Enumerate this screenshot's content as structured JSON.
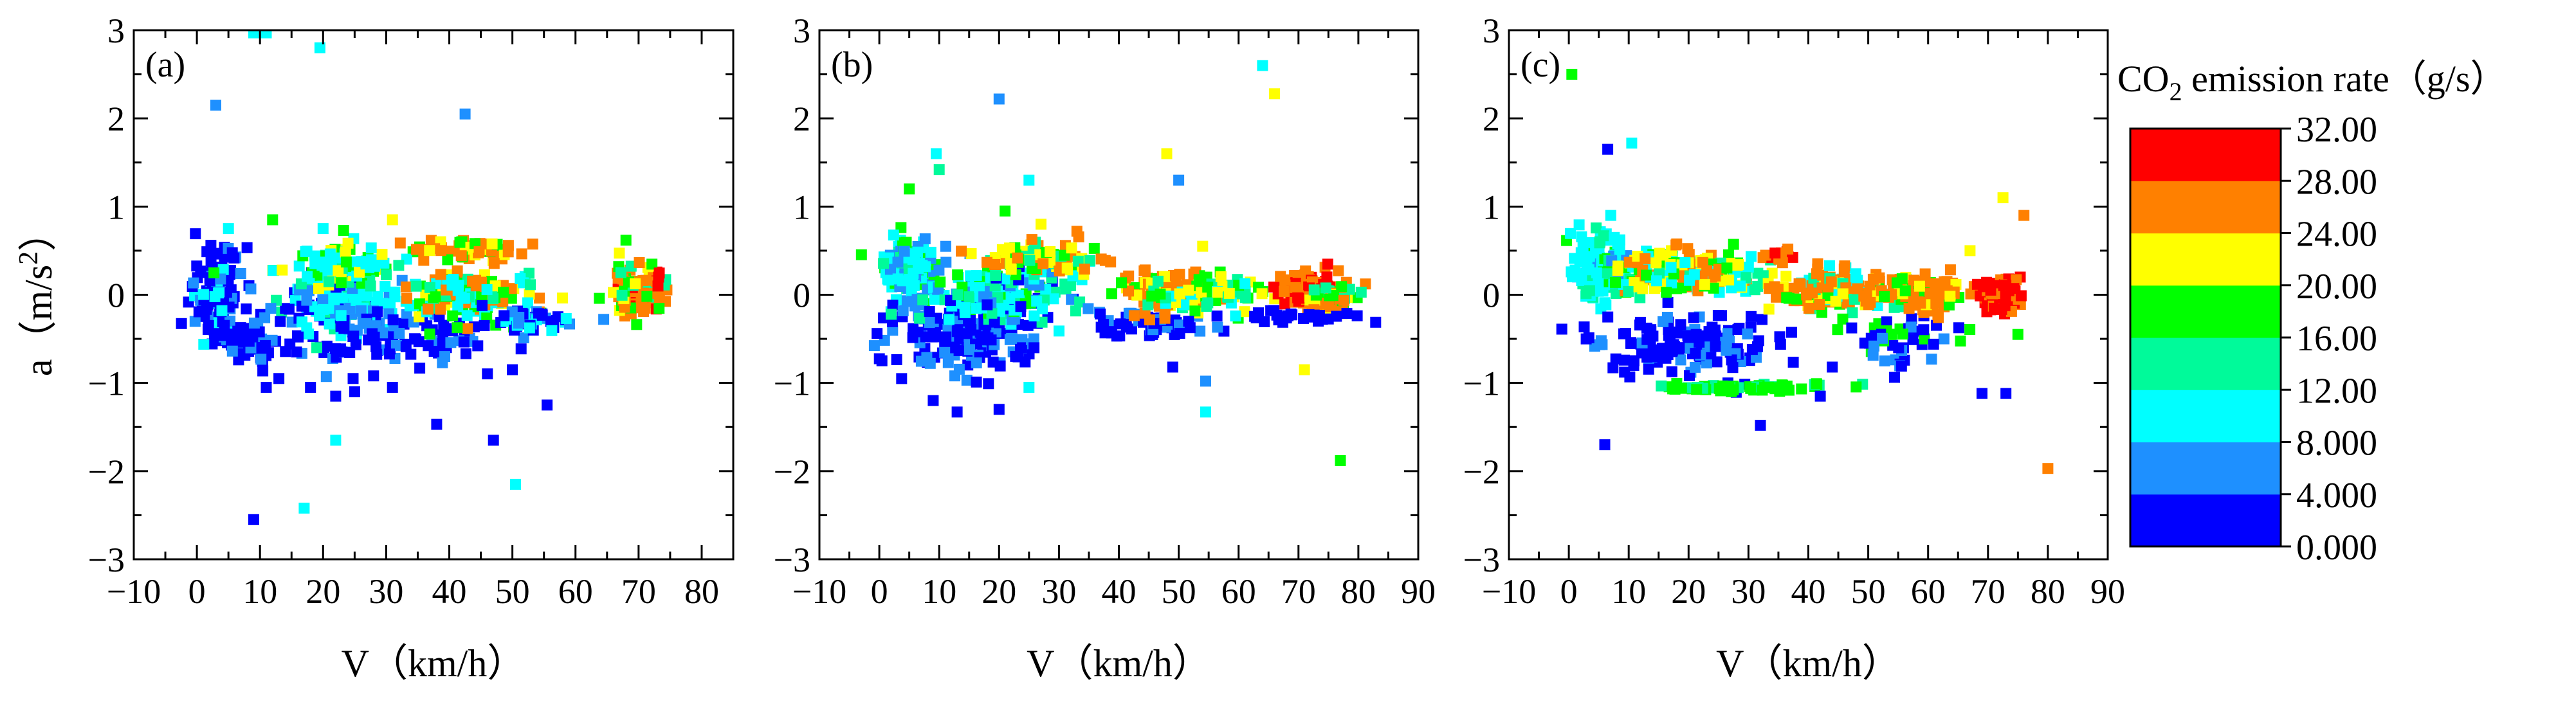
{
  "figure": {
    "ylabel_main": "a（m/s",
    "ylabel_sup": "2",
    "ylabel_close": "）",
    "colorbar_title_main": "CO",
    "colorbar_title_sub": "2",
    "colorbar_title_rest": " emission rate（g/s）"
  },
  "colorbar": {
    "levels": [
      "0.000",
      "4.000",
      "8.000",
      "12.00",
      "16.00",
      "20.00",
      "24.00",
      "28.00",
      "32.00"
    ],
    "colors": [
      "#0000ff",
      "#1e90ff",
      "#00ffff",
      "#00fa9a",
      "#00ff00",
      "#ffff00",
      "#ff8000",
      "#ff0000"
    ]
  },
  "chart_data": [
    {
      "type": "scatter",
      "panel_label": "(a)",
      "xlabel": "V（km/h）",
      "ylabel": "a（m/s²）",
      "xlim": [
        -10,
        85
      ],
      "ylim": [
        -3,
        3
      ],
      "xticks": [
        "-10",
        "0",
        "10",
        "20",
        "30",
        "40",
        "50",
        "60",
        "70",
        "80"
      ],
      "yticks": [
        "3",
        "2",
        "1",
        "0",
        "-1",
        "-2",
        "-3"
      ],
      "color_variable": "CO2 emission rate (g/s)",
      "points": [
        {
          "x": 9,
          "y": 2.97,
          "c": 6
        },
        {
          "x": 11,
          "y": 2.97,
          "c": 6
        },
        {
          "x": 19.5,
          "y": 2.8,
          "c": 7
        },
        {
          "x": 3,
          "y": 2.15,
          "c": 3
        },
        {
          "x": 42.5,
          "y": 2.05,
          "c": 3
        },
        {
          "x": 5,
          "y": 0.75,
          "c": 5
        },
        {
          "x": 12,
          "y": 0.85,
          "c": 11
        },
        {
          "x": 31,
          "y": 0.85,
          "c": 13
        },
        {
          "x": 20,
          "y": 0.75,
          "c": 7
        },
        {
          "x": 68,
          "y": 0.62,
          "c": 12
        },
        {
          "x": 22,
          "y": -1.65,
          "c": 5
        },
        {
          "x": 38,
          "y": -1.47,
          "c": 2
        },
        {
          "x": 47,
          "y": -1.65,
          "c": 2
        },
        {
          "x": 55.5,
          "y": -1.25,
          "c": 2
        },
        {
          "x": 50.5,
          "y": -2.15,
          "c": 5
        },
        {
          "x": 17,
          "y": -2.42,
          "c": 5
        },
        {
          "x": 9,
          "y": -2.55,
          "c": 2
        },
        {
          "x": 19,
          "y": -0.6,
          "c": 9
        },
        {
          "x": 18,
          "y": -1.05,
          "c": 2
        },
        {
          "x": 31,
          "y": -1.05,
          "c": 2
        },
        {
          "x": 22,
          "y": -1.15,
          "c": 2
        },
        {
          "x": 11,
          "y": -1.05,
          "c": 2
        },
        {
          "x": 50,
          "y": -0.85,
          "c": 2
        },
        {
          "x": 28,
          "y": -0.92,
          "c": 2
        },
        {
          "x": 13,
          "y": -0.95,
          "c": 2
        },
        {
          "x": 25,
          "y": -1.1,
          "c": 2
        }
      ],
      "clusters": [
        {
          "cx": 3,
          "cy": 0.05,
          "sx": 3.5,
          "sy": 0.42,
          "n": 110,
          "cs": [
            2,
            2,
            2,
            2,
            3,
            3,
            6
          ]
        },
        {
          "cx": 8,
          "cy": -0.5,
          "sx": 5,
          "sy": 0.25,
          "n": 60,
          "cs": [
            2,
            2,
            2,
            3
          ]
        },
        {
          "cx": 22,
          "cy": -0.15,
          "sx": 8,
          "sy": 0.32,
          "n": 130,
          "cs": [
            2,
            2,
            3,
            6,
            6,
            7,
            9
          ]
        },
        {
          "cx": 30,
          "cy": -0.5,
          "sx": 15,
          "sy": 0.25,
          "n": 90,
          "cs": [
            2,
            2,
            2,
            3
          ]
        },
        {
          "cx": 22,
          "cy": 0.35,
          "sx": 8,
          "sy": 0.2,
          "n": 100,
          "cs": [
            6,
            7,
            7,
            9,
            11,
            13
          ]
        },
        {
          "cx": 43,
          "cy": 0.0,
          "sx": 9,
          "sy": 0.22,
          "n": 150,
          "cs": [
            6,
            7,
            9,
            11,
            11,
            13,
            15,
            15
          ]
        },
        {
          "cx": 43,
          "cy": 0.5,
          "sx": 8,
          "sy": 0.12,
          "n": 50,
          "cs": [
            11,
            13,
            15,
            15,
            17,
            17
          ]
        },
        {
          "cx": 70,
          "cy": 0.05,
          "sx": 3.3,
          "sy": 0.2,
          "n": 130,
          "cs": [
            9,
            11,
            13,
            15,
            15,
            17,
            17,
            19
          ]
        },
        {
          "cx": 54,
          "cy": -0.3,
          "sx": 7,
          "sy": 0.12,
          "n": 40,
          "cs": [
            2,
            2,
            3,
            6
          ]
        }
      ]
    },
    {
      "type": "scatter",
      "panel_label": "(b)",
      "xlabel": "V（km/h）",
      "ylabel": "a（m/s²）",
      "xlim": [
        -10,
        90
      ],
      "ylim": [
        -3,
        3
      ],
      "xticks": [
        "-10",
        "0",
        "10",
        "20",
        "30",
        "40",
        "50",
        "60",
        "70",
        "80",
        "90"
      ],
      "yticks": [
        "3",
        "2",
        "1",
        "0",
        "-1",
        "-2",
        "-3"
      ],
      "color_variable": "CO2 emission rate (g/s)",
      "points": [
        {
          "x": 64,
          "y": 2.6,
          "c": 6
        },
        {
          "x": 66,
          "y": 2.28,
          "c": 14
        },
        {
          "x": 20,
          "y": 2.22,
          "c": 3
        },
        {
          "x": 48,
          "y": 1.6,
          "c": 14
        },
        {
          "x": 9.5,
          "y": 1.6,
          "c": 7
        },
        {
          "x": 10,
          "y": 1.42,
          "c": 9
        },
        {
          "x": 25,
          "y": 1.3,
          "c": 7
        },
        {
          "x": 50,
          "y": 1.3,
          "c": 3
        },
        {
          "x": 5,
          "y": 1.2,
          "c": 11
        },
        {
          "x": 21,
          "y": 0.95,
          "c": 11
        },
        {
          "x": 27,
          "y": 0.8,
          "c": 13
        },
        {
          "x": 33,
          "y": 0.72,
          "c": 17
        },
        {
          "x": 54,
          "y": 0.55,
          "c": 13
        },
        {
          "x": 71,
          "y": -0.85,
          "c": 14
        },
        {
          "x": 54.5,
          "y": -0.98,
          "c": 3
        },
        {
          "x": 54.5,
          "y": -1.33,
          "c": 6
        },
        {
          "x": 77,
          "y": -1.88,
          "c": 11
        },
        {
          "x": 49,
          "y": -0.82,
          "c": 2
        },
        {
          "x": 20,
          "y": -1.3,
          "c": 2
        },
        {
          "x": 13,
          "y": -1.33,
          "c": 2
        },
        {
          "x": 9,
          "y": -1.2,
          "c": 2
        },
        {
          "x": 25,
          "y": -1.05,
          "c": 5
        }
      ],
      "clusters": [
        {
          "cx": 5,
          "cy": 0.3,
          "sx": 4,
          "sy": 0.28,
          "n": 120,
          "cs": [
            3,
            5,
            6,
            6,
            7,
            9,
            11
          ]
        },
        {
          "cx": 15,
          "cy": -0.45,
          "sx": 10,
          "sy": 0.35,
          "n": 170,
          "cs": [
            2,
            2,
            2,
            2,
            3,
            3
          ]
        },
        {
          "cx": 20,
          "cy": 0.0,
          "sx": 10,
          "sy": 0.32,
          "n": 170,
          "cs": [
            2,
            3,
            5,
            6,
            6,
            7,
            9,
            11
          ]
        },
        {
          "cx": 28,
          "cy": 0.4,
          "sx": 9,
          "sy": 0.15,
          "n": 90,
          "cs": [
            9,
            11,
            13,
            15,
            17
          ]
        },
        {
          "cx": 45,
          "cy": -0.35,
          "sx": 8,
          "sy": 0.15,
          "n": 60,
          "cs": [
            2,
            2,
            3
          ]
        },
        {
          "cx": 48,
          "cy": 0.05,
          "sx": 6,
          "sy": 0.2,
          "n": 110,
          "cs": [
            11,
            13,
            15,
            15,
            17
          ]
        },
        {
          "cx": 55,
          "cy": 0.0,
          "sx": 8,
          "sy": 0.2,
          "n": 60,
          "cs": [
            6,
            9,
            11,
            13
          ]
        },
        {
          "cx": 72,
          "cy": 0.05,
          "sx": 4,
          "sy": 0.15,
          "n": 140,
          "cs": [
            15,
            17,
            17,
            19,
            19,
            19,
            19
          ]
        },
        {
          "cx": 76,
          "cy": -0.05,
          "sx": 3,
          "sy": 0.15,
          "n": 60,
          "cs": [
            9,
            11,
            13,
            15,
            17
          ]
        },
        {
          "cx": 70,
          "cy": -0.25,
          "sx": 9,
          "sy": 0.05,
          "n": 30,
          "cs": [
            2
          ]
        }
      ]
    },
    {
      "type": "scatter",
      "panel_label": "(c)",
      "xlabel": "V（km/h）",
      "ylabel": "a（m/s²）",
      "xlim": [
        -10,
        90
      ],
      "ylim": [
        -3,
        3
      ],
      "xticks": [
        "-10",
        "0",
        "10",
        "20",
        "30",
        "40",
        "50",
        "60",
        "70",
        "80",
        "90"
      ],
      "yticks": [
        "3",
        "2",
        "1",
        "0",
        "-1",
        "-2",
        "-3"
      ],
      "color_variable": "CO2 emission rate (g/s)",
      "points": [
        {
          "x": 0.5,
          "y": 2.5,
          "c": 11
        },
        {
          "x": 10.5,
          "y": 1.72,
          "c": 7
        },
        {
          "x": 6.5,
          "y": 1.65,
          "c": 2
        },
        {
          "x": 72.5,
          "y": 1.1,
          "c": 14
        },
        {
          "x": 76,
          "y": 0.9,
          "c": 16
        },
        {
          "x": 7,
          "y": 0.9,
          "c": 7
        },
        {
          "x": 67,
          "y": 0.5,
          "c": 14
        },
        {
          "x": 80,
          "y": -1.97,
          "c": 16
        },
        {
          "x": 32,
          "y": -1.48,
          "c": 2
        },
        {
          "x": 6,
          "y": -1.7,
          "c": 2
        },
        {
          "x": 69,
          "y": -1.12,
          "c": 2
        },
        {
          "x": 73,
          "y": -1.12,
          "c": 2
        },
        {
          "x": 42,
          "y": -1.15,
          "c": 2
        },
        {
          "x": 44,
          "y": -0.82,
          "c": 2
        },
        {
          "x": 75,
          "y": -0.45,
          "c": 11
        }
      ],
      "clusters": [
        {
          "cx": 5,
          "cy": 0.3,
          "sx": 4,
          "sy": 0.35,
          "n": 120,
          "cs": [
            3,
            5,
            6,
            6,
            7,
            9,
            11
          ]
        },
        {
          "cx": 20,
          "cy": -0.55,
          "sx": 12,
          "sy": 0.3,
          "n": 150,
          "cs": [
            2,
            2,
            2,
            2,
            3
          ]
        },
        {
          "cx": 20,
          "cy": 0.25,
          "sx": 10,
          "sy": 0.2,
          "n": 200,
          "cs": [
            6,
            7,
            9,
            11,
            13,
            13,
            15,
            17
          ]
        },
        {
          "cx": 30,
          "cy": -1.05,
          "sx": 14,
          "sy": 0.03,
          "n": 55,
          "cs": [
            9,
            11,
            11
          ]
        },
        {
          "cx": 45,
          "cy": 0.05,
          "sx": 8,
          "sy": 0.18,
          "n": 150,
          "cs": [
            6,
            9,
            11,
            13,
            15,
            15,
            17
          ]
        },
        {
          "cx": 55,
          "cy": -0.5,
          "sx": 8,
          "sy": 0.25,
          "n": 50,
          "cs": [
            2,
            2,
            3,
            11
          ]
        },
        {
          "cx": 60,
          "cy": 0.0,
          "sx": 6,
          "sy": 0.2,
          "n": 90,
          "cs": [
            11,
            13,
            15,
            15,
            17
          ]
        },
        {
          "cx": 72,
          "cy": 0.0,
          "sx": 3,
          "sy": 0.15,
          "n": 120,
          "cs": [
            17,
            19,
            19,
            19,
            15
          ]
        },
        {
          "cx": 35,
          "cy": 0.45,
          "sx": 2,
          "sy": 0.06,
          "n": 14,
          "cs": [
            19,
            17
          ]
        }
      ]
    }
  ]
}
